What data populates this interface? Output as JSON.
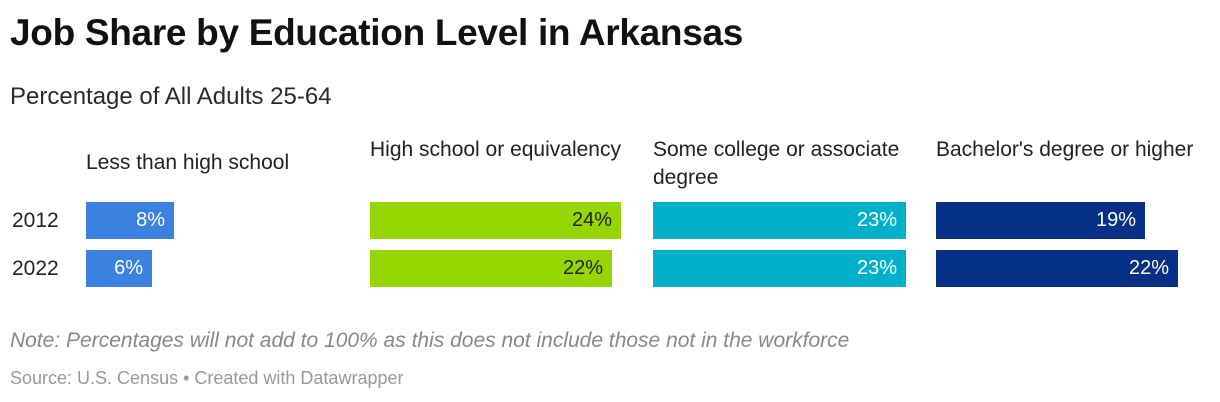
{
  "title": "Job Share by Education Level in Arkansas",
  "subtitle": "Percentage of All Adults 25-64",
  "note": "Note: Percentages will not add to 100% as this does not include those not in the workforce",
  "source": "Source: U.S. Census • Created with Datawrapper",
  "chart_data": {
    "type": "bar",
    "categories": [
      "2012",
      "2022"
    ],
    "x_max": 25,
    "series": [
      {
        "name": "Less than high school",
        "values": [
          8,
          6
        ],
        "labels": [
          "8%",
          "6%"
        ],
        "color": "#3b82e0",
        "text_color": "#ffffff"
      },
      {
        "name": "High school or equivalency",
        "values": [
          24,
          22
        ],
        "labels": [
          "24%",
          "22%"
        ],
        "color": "#96d600",
        "text_color": "#222222"
      },
      {
        "name": "Some college or associate degree",
        "values": [
          23,
          23
        ],
        "labels": [
          "23%",
          "23%"
        ],
        "color": "#00b0c8",
        "text_color": "#ffffff"
      },
      {
        "name": "Bachelor's degree or higher",
        "values": [
          19,
          22
        ],
        "labels": [
          "19%",
          "22%"
        ],
        "color": "#053085",
        "text_color": "#ffffff"
      }
    ]
  }
}
